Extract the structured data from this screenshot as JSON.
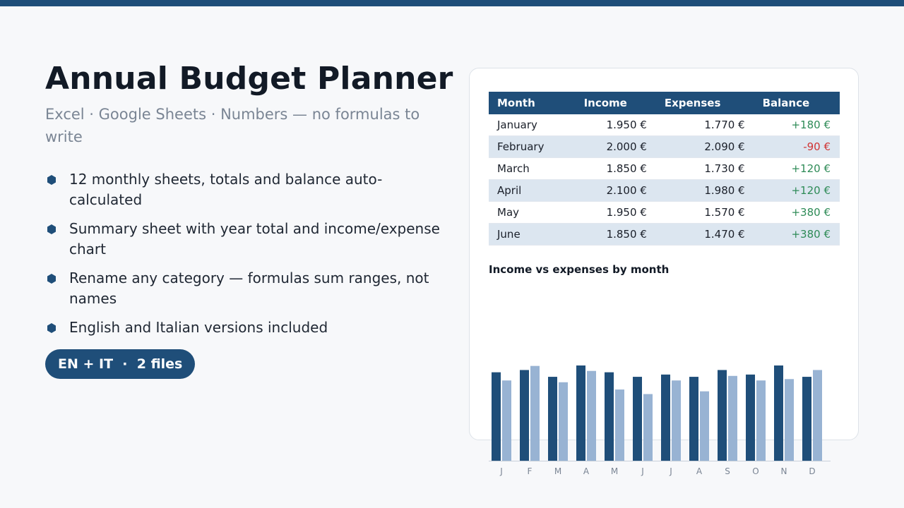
{
  "page": {
    "title": "Annual Budget Planner",
    "subtitle": "Excel · Google Sheets · Numbers — no formulas to write",
    "features": [
      "12 monthly sheets, totals and balance auto-calculated",
      "Summary sheet with year total and income/expense chart",
      "Rename any category — formulas sum ranges, not names",
      "English and Italian versions included"
    ],
    "badge": "EN + IT  ·  2 files"
  },
  "table": {
    "headers": [
      "Month",
      "Income",
      "Expenses",
      "Balance"
    ],
    "rows": [
      {
        "month": "January",
        "income": "1.950 €",
        "expenses": "1.770 €",
        "balance": "+180 €"
      },
      {
        "month": "February",
        "income": "2.000 €",
        "expenses": "2.090 €",
        "balance": "-90 €"
      },
      {
        "month": "March",
        "income": "1.850 €",
        "expenses": "1.730 €",
        "balance": "+120 €"
      },
      {
        "month": "April",
        "income": "2.100 €",
        "expenses": "1.980 €",
        "balance": "+120 €"
      },
      {
        "month": "May",
        "income": "1.950 €",
        "expenses": "1.570 €",
        "balance": "+380 €"
      },
      {
        "month": "June",
        "income": "1.850 €",
        "expenses": "1.470 €",
        "balance": "+380 €"
      }
    ]
  },
  "colors": {
    "accent": "#1f4e79",
    "series_income": "#1f4e79",
    "series_expenses": "#98b3d3",
    "positive": "#2e8b57",
    "negative": "#d03434"
  },
  "chart_data": {
    "type": "bar",
    "title": "Income vs expenses by month",
    "categories": [
      "J",
      "F",
      "M",
      "A",
      "M",
      "J",
      "J",
      "A",
      "S",
      "O",
      "N",
      "D"
    ],
    "series": [
      {
        "values": [
          1950,
          2000,
          1850,
          2100,
          1950,
          1850,
          1900,
          1850,
          2000,
          1900,
          2100,
          1850
        ]
      },
      {
        "values": [
          1770,
          2090,
          1730,
          1980,
          1570,
          1470,
          1770,
          1530,
          1870,
          1770,
          1800,
          2000
        ]
      }
    ],
    "ylim": [
      0,
      2100
    ],
    "legend": "none",
    "grid": false
  }
}
